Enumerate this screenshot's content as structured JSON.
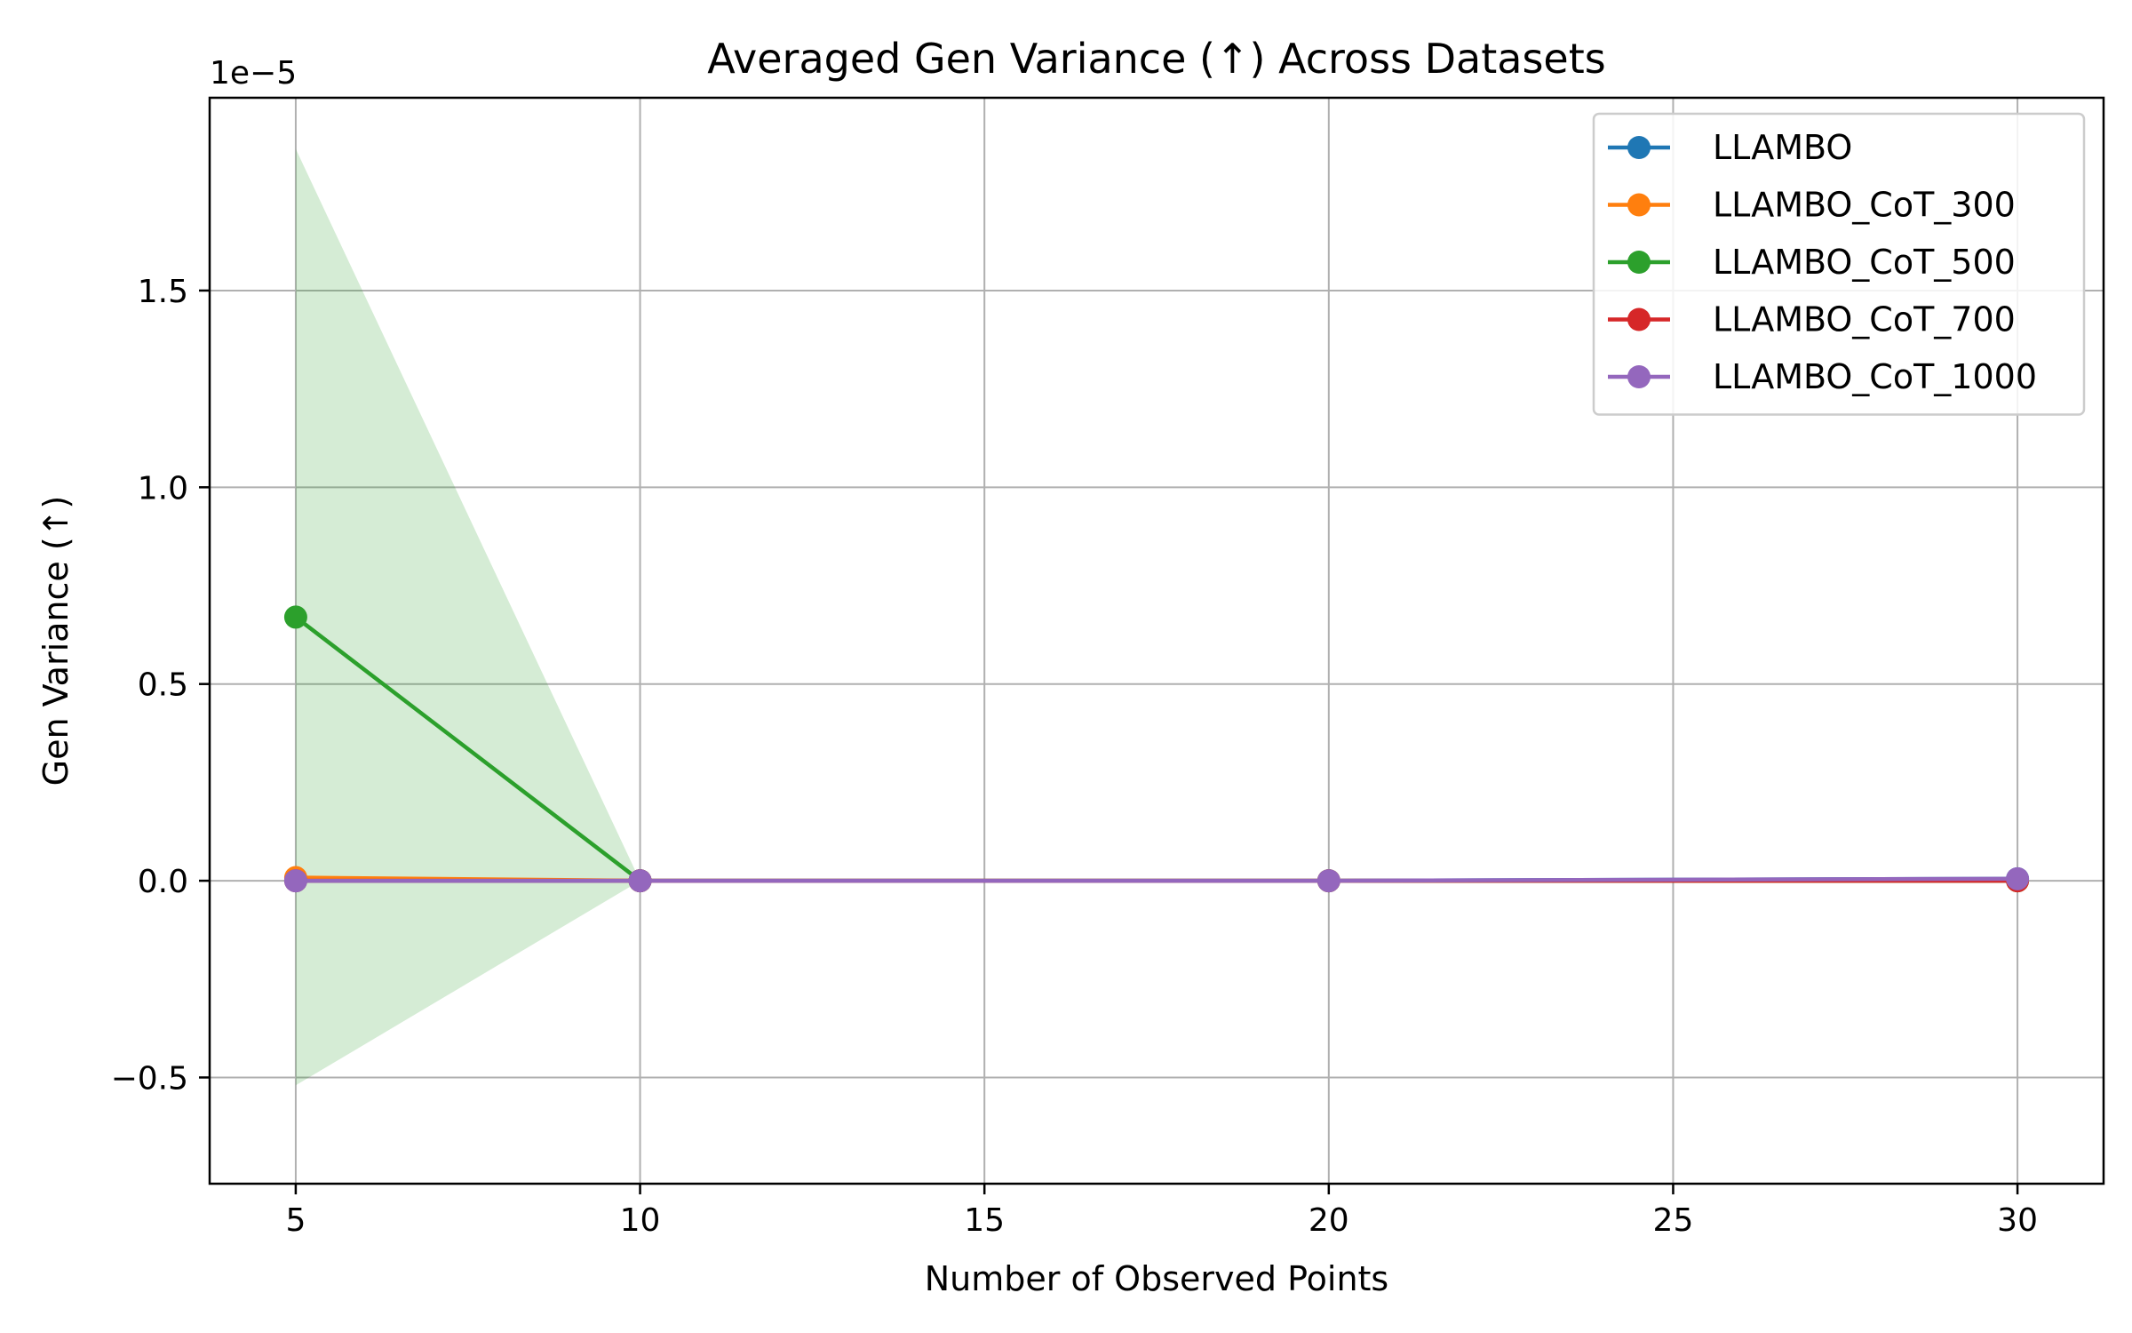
{
  "chart_data": {
    "type": "line",
    "title": "Averaged Gen Variance (↑) Across Datasets",
    "xlabel": "Number of Observed Points",
    "ylabel": "Gen Variance (↑)",
    "offset_label": "1e−5",
    "x": [
      5,
      10,
      20,
      30
    ],
    "xlim": [
      3.75,
      31.25
    ],
    "ylim": [
      -7.7e-06,
      1.99e-05
    ],
    "xticks": [
      5,
      10,
      15,
      20,
      25,
      30
    ],
    "xtick_labels": [
      "5",
      "10",
      "15",
      "20",
      "25",
      "30"
    ],
    "yticks": [
      -5e-06,
      0,
      5e-06,
      1e-05,
      1.5e-05
    ],
    "ytick_labels": [
      "−0.5",
      "0.0",
      "0.5",
      "1.0",
      "1.5"
    ],
    "grid": true,
    "legend_position": "top-right",
    "series": [
      {
        "name": "LLAMBO",
        "color": "#1f77b4",
        "values": [
          0,
          0,
          0,
          5e-08
        ]
      },
      {
        "name": "LLAMBO_CoT_300",
        "color": "#ff7f0e",
        "values": [
          8e-08,
          0,
          0,
          0
        ]
      },
      {
        "name": "LLAMBO_CoT_500",
        "color": "#2ca02c",
        "values": [
          6.7e-06,
          0,
          0,
          0
        ],
        "band": {
          "lower": [
            -5.2e-06,
            0,
            0,
            0
          ],
          "upper": [
            1.86e-05,
            0,
            0,
            0
          ],
          "color": "#2ca02c"
        }
      },
      {
        "name": "LLAMBO_CoT_700",
        "color": "#d62728",
        "values": [
          0,
          0,
          0,
          0
        ]
      },
      {
        "name": "LLAMBO_CoT_1000",
        "color": "#9467bd",
        "values": [
          0,
          0,
          0,
          5e-08
        ]
      }
    ]
  }
}
